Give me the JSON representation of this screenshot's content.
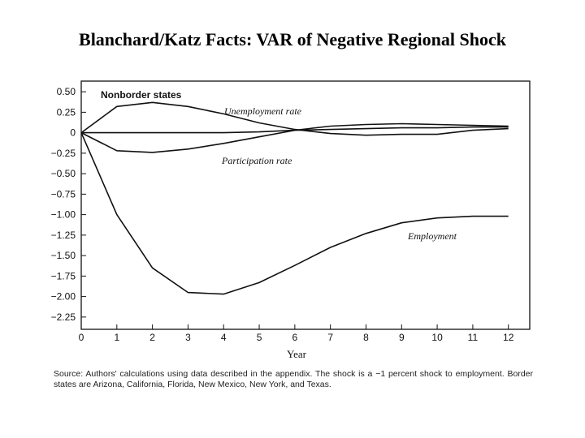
{
  "page": {
    "title": "Blanchard/Katz Facts: VAR of  Negative Regional Shock",
    "source_note": "Source: Authors' calculations using data described in the appendix. The shock is a −1 percent shock to employment. Border states are Arizona, California, Florida, New Mexico, New York, and Texas."
  },
  "chart_data": {
    "type": "line",
    "title": "Nonborder states",
    "xlabel": "Year",
    "ylabel": "",
    "x": [
      0,
      1,
      2,
      3,
      4,
      5,
      6,
      7,
      8,
      9,
      10,
      11,
      12
    ],
    "x_ticks": [
      "0",
      "1",
      "2",
      "3",
      "4",
      "5",
      "6",
      "7",
      "8",
      "9",
      "10",
      "11",
      "12"
    ],
    "y_ticks": [
      0.5,
      0.25,
      0,
      -0.25,
      -0.5,
      -0.75,
      -1.0,
      -1.25,
      -1.5,
      -1.75,
      -2.0,
      -2.25
    ],
    "y_tick_labels": [
      "0.50",
      "0.25",
      "0",
      "−0.25",
      "−0.50",
      "−0.75",
      "−1.00",
      "−1.25",
      "−1.50",
      "−1.75",
      "−2.00",
      "−2.25"
    ],
    "xlim": [
      0,
      12.6
    ],
    "ylim": [
      -2.4,
      0.63
    ],
    "grid": false,
    "color": "#111111",
    "series": [
      {
        "name": "Unemployment rate",
        "values": [
          0,
          0.32,
          0.37,
          0.32,
          0.23,
          0.12,
          0.04,
          -0.01,
          -0.03,
          -0.02,
          -0.02,
          0.03,
          0.05
        ]
      },
      {
        "name": "Participation rate",
        "values": [
          0,
          -0.22,
          -0.24,
          -0.2,
          -0.13,
          -0.05,
          0.03,
          0.08,
          0.1,
          0.11,
          0.1,
          0.09,
          0.08
        ]
      },
      {
        "name": "",
        "values": [
          0,
          0,
          0,
          0,
          0,
          0.01,
          0.03,
          0.04,
          0.05,
          0.06,
          0.06,
          0.07,
          0.07
        ]
      },
      {
        "name": "Employment",
        "values": [
          0,
          -1.0,
          -1.65,
          -1.95,
          -1.97,
          -1.83,
          -1.62,
          -1.4,
          -1.23,
          -1.1,
          -1.04,
          -1.02,
          -1.02
        ]
      }
    ]
  }
}
